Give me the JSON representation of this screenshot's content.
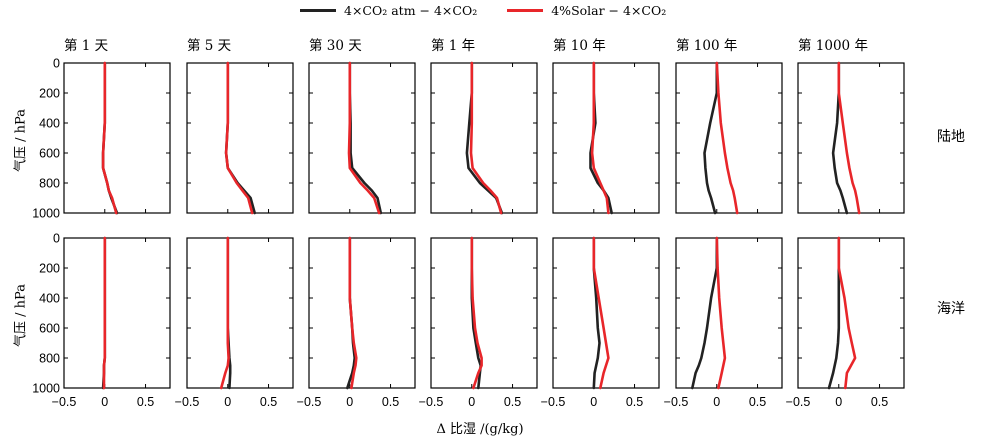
{
  "legend": [
    {
      "label": "4×CO₂ atm − 4×CO₂",
      "color": "#222222"
    },
    {
      "label": "4%Solar − 4×CO₂",
      "color": "#e8262a"
    }
  ],
  "row_labels": [
    "陆地",
    "海洋"
  ],
  "ylabel": "气压 / hPa",
  "xlabel": "Δ 比湿 /(g/kg)",
  "chart_data": {
    "type": "line",
    "title": "",
    "xlabel": "Δ 比湿 /(g/kg)",
    "ylabel": "气压 / hPa",
    "xlim": [
      -0.5,
      0.8
    ],
    "ylim": [
      1000,
      0
    ],
    "xticks": [
      "−0.5",
      "0",
      "0.5"
    ],
    "xtick_values": [
      -0.5,
      0,
      0.5
    ],
    "yticks": [
      "0",
      "200",
      "400",
      "600",
      "800",
      "1000"
    ],
    "ytick_values": [
      0,
      200,
      400,
      600,
      800,
      1000
    ],
    "columns": [
      "第 1 天",
      "第 5 天",
      "第 30 天",
      "第 1 年",
      "第 10 年",
      "第 100 年",
      "第 1000 年"
    ],
    "rows": [
      "陆地",
      "海洋"
    ],
    "pressure": [
      0,
      200,
      400,
      600,
      700,
      800,
      850,
      900,
      1000
    ],
    "panels": [
      [
        {
          "black": [
            0,
            0,
            0,
            -0.02,
            -0.02,
            0.03,
            0.05,
            0.08,
            0.15
          ],
          "red": [
            0,
            0,
            0,
            -0.02,
            -0.02,
            0.03,
            0.05,
            0.09,
            0.14
          ]
        },
        {
          "black": [
            0,
            0,
            0,
            -0.02,
            0,
            0.12,
            0.2,
            0.28,
            0.33
          ],
          "red": [
            0,
            0,
            0,
            -0.02,
            0,
            0.11,
            0.18,
            0.25,
            0.3
          ]
        },
        {
          "black": [
            0,
            0,
            0.01,
            0.01,
            0.03,
            0.18,
            0.27,
            0.34,
            0.38
          ],
          "red": [
            0,
            0,
            0,
            -0.01,
            0,
            0.13,
            0.22,
            0.3,
            0.36
          ]
        },
        {
          "black": [
            0,
            0,
            -0.03,
            -0.06,
            -0.04,
            0.1,
            0.2,
            0.3,
            0.37
          ],
          "red": [
            0,
            0,
            0,
            -0.01,
            0.01,
            0.14,
            0.23,
            0.31,
            0.36
          ]
        },
        {
          "black": [
            0,
            0,
            0.02,
            -0.04,
            -0.04,
            0.05,
            0.12,
            0.18,
            0.22
          ],
          "red": [
            0,
            0,
            0,
            -0.02,
            0,
            0.08,
            0.12,
            0.16,
            0.18
          ]
        },
        {
          "black": [
            0,
            0,
            -0.08,
            -0.15,
            -0.14,
            -0.12,
            -0.1,
            -0.07,
            -0.02
          ],
          "red": [
            0,
            0.02,
            0.05,
            0.1,
            0.13,
            0.17,
            0.2,
            0.22,
            0.25
          ]
        },
        {
          "black": [
            0,
            0,
            -0.02,
            -0.07,
            -0.05,
            -0.02,
            0.02,
            0.05,
            0.1
          ],
          "red": [
            0,
            0,
            0.05,
            0.1,
            0.13,
            0.17,
            0.2,
            0.22,
            0.25
          ]
        }
      ],
      [
        {
          "black": [
            0,
            0,
            0,
            0,
            0,
            0,
            -0.01,
            -0.01,
            -0.02
          ],
          "red": [
            0,
            0,
            0,
            0,
            0,
            0,
            -0.01,
            -0.01,
            -0.01
          ]
        },
        {
          "black": [
            0,
            0,
            0,
            0,
            0.01,
            0.02,
            0.03,
            0.03,
            0.02
          ],
          "red": [
            0,
            0,
            0,
            0,
            0,
            0.01,
            0,
            -0.03,
            -0.08
          ]
        },
        {
          "black": [
            0,
            0,
            0,
            0.03,
            0.04,
            0.06,
            0.05,
            0.03,
            -0.03
          ],
          "red": [
            0,
            0,
            0,
            0.03,
            0.05,
            0.08,
            0.07,
            0.05,
            0.02
          ]
        },
        {
          "black": [
            0,
            0,
            0,
            0.02,
            0.05,
            0.08,
            0.11,
            0.1,
            0.08
          ],
          "red": [
            0,
            0,
            0.01,
            0.04,
            0.07,
            0.12,
            0.12,
            0.08,
            0.02
          ]
        },
        {
          "black": [
            0,
            0,
            0.03,
            0.05,
            0.07,
            0.05,
            0.03,
            0.01,
            0
          ],
          "red": [
            0,
            0,
            0.06,
            0.12,
            0.15,
            0.18,
            0.15,
            0.12,
            0.08
          ]
        },
        {
          "black": [
            0,
            0,
            -0.07,
            -0.12,
            -0.15,
            -0.19,
            -0.22,
            -0.26,
            -0.3
          ],
          "red": [
            0,
            0.01,
            0.03,
            0.06,
            0.08,
            0.1,
            0.08,
            0.06,
            0.02
          ]
        },
        {
          "black": [
            0,
            0,
            0,
            0,
            -0.01,
            -0.03,
            -0.05,
            -0.07,
            -0.12
          ],
          "red": [
            0,
            0,
            0.07,
            0.12,
            0.16,
            0.2,
            0.15,
            0.1,
            0.08
          ]
        }
      ]
    ]
  }
}
